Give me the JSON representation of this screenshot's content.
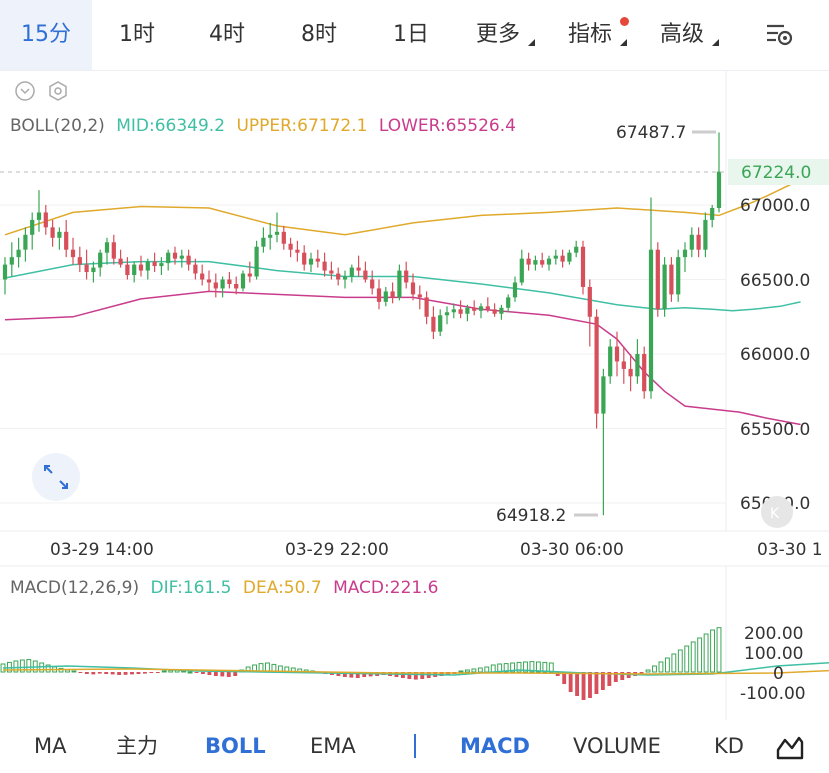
{
  "top_tabs": [
    "15分",
    "1时",
    "4时",
    "8时",
    "1日"
  ],
  "more_label": "更多",
  "indicator_label": "指标",
  "advanced_label": "高级",
  "accent_color": "#2f6fd6",
  "up_color": "#3aa655",
  "down_color": "#d64f5a",
  "boll_legend": {
    "name": "BOLL(20,2)",
    "mid": "MID:66349.2",
    "upper": "UPPER:67172.1",
    "lower": "LOWER:65526.4"
  },
  "macd_legend": {
    "name": "MACD(12,26,9)",
    "dif": "DIF:161.5",
    "dea": "DEA:50.7",
    "macd": "MACD:221.6"
  },
  "high_marker": "67487.7",
  "low_marker": "64918.2",
  "current_price": "67224.0",
  "bottom_indicators": [
    "MA",
    "主力",
    "BOLL",
    "EMA",
    "MACD",
    "VOLUME",
    "KD"
  ],
  "chart_data": {
    "type": "candlestick",
    "price_axis": {
      "ticks": [
        "67000.0",
        "66500.0",
        "66000.0",
        "65500.0",
        "65000.0"
      ],
      "range": [
        64880,
        67800
      ]
    },
    "time_axis": {
      "ticks": [
        "03-29 14:00",
        "03-29 22:00",
        "03-30 06:00",
        "03-30 1"
      ]
    },
    "macd_axis": {
      "ticks": [
        "200.00",
        "100.00",
        "0",
        "-100.00"
      ],
      "range": [
        -160,
        260
      ]
    },
    "candles": [
      [
        66500,
        66650,
        66400,
        66600
      ],
      [
        66600,
        66750,
        66520,
        66650
      ],
      [
        66650,
        66780,
        66580,
        66700
      ],
      [
        66700,
        66850,
        66620,
        66800
      ],
      [
        66800,
        66950,
        66700,
        66900
      ],
      [
        66900,
        67100,
        66820,
        66950
      ],
      [
        66950,
        67000,
        66800,
        66850
      ],
      [
        66850,
        66900,
        66720,
        66780
      ],
      [
        66780,
        66850,
        66700,
        66820
      ],
      [
        66820,
        66900,
        66650,
        66700
      ],
      [
        66700,
        66780,
        66600,
        66650
      ],
      [
        66650,
        66720,
        66550,
        66600
      ],
      [
        66600,
        66700,
        66500,
        66550
      ],
      [
        66550,
        66620,
        66480,
        66580
      ],
      [
        66580,
        66700,
        66520,
        66680
      ],
      [
        66680,
        66780,
        66600,
        66750
      ],
      [
        66750,
        66800,
        66600,
        66640
      ],
      [
        66640,
        66700,
        66580,
        66600
      ],
      [
        66600,
        66650,
        66500,
        66530
      ],
      [
        66530,
        66620,
        66480,
        66600
      ],
      [
        66600,
        66660,
        66520,
        66560
      ],
      [
        66560,
        66640,
        66500,
        66620
      ],
      [
        66620,
        66680,
        66550,
        66590
      ],
      [
        66590,
        66650,
        66530,
        66610
      ],
      [
        66610,
        66700,
        66560,
        66680
      ],
      [
        66680,
        66720,
        66600,
        66640
      ],
      [
        66640,
        66700,
        66580,
        66660
      ],
      [
        66660,
        66700,
        66560,
        66600
      ],
      [
        66600,
        66640,
        66500,
        66540
      ],
      [
        66540,
        66600,
        66460,
        66500
      ],
      [
        66500,
        66560,
        66420,
        66480
      ],
      [
        66480,
        66540,
        66380,
        66440
      ],
      [
        66440,
        66520,
        66380,
        66500
      ],
      [
        66500,
        66550,
        66440,
        66470
      ],
      [
        66470,
        66520,
        66400,
        66440
      ],
      [
        66440,
        66560,
        66420,
        66540
      ],
      [
        66540,
        66620,
        66480,
        66520
      ],
      [
        66520,
        66760,
        66500,
        66720
      ],
      [
        66720,
        66850,
        66680,
        66780
      ],
      [
        66780,
        66880,
        66700,
        66800
      ],
      [
        66800,
        66950,
        66750,
        66820
      ],
      [
        66820,
        66860,
        66700,
        66740
      ],
      [
        66740,
        66780,
        66650,
        66700
      ],
      [
        66700,
        66760,
        66620,
        66680
      ],
      [
        66680,
        66730,
        66560,
        66600
      ],
      [
        66600,
        66680,
        66550,
        66640
      ],
      [
        66640,
        66700,
        66580,
        66620
      ],
      [
        66620,
        66680,
        66520,
        66560
      ],
      [
        66560,
        66620,
        66500,
        66540
      ],
      [
        66540,
        66580,
        66460,
        66500
      ],
      [
        66500,
        66560,
        66440,
        66520
      ],
      [
        66520,
        66600,
        66480,
        66580
      ],
      [
        66580,
        66660,
        66520,
        66560
      ],
      [
        66560,
        66620,
        66480,
        66500
      ],
      [
        66500,
        66560,
        66400,
        66440
      ],
      [
        66440,
        66500,
        66300,
        66350
      ],
      [
        66350,
        66450,
        66320,
        66420
      ],
      [
        66420,
        66480,
        66340,
        66380
      ],
      [
        66380,
        66600,
        66360,
        66560
      ],
      [
        66560,
        66620,
        66440,
        66480
      ],
      [
        66480,
        66540,
        66360,
        66400
      ],
      [
        66400,
        66460,
        66300,
        66380
      ],
      [
        66380,
        66420,
        66200,
        66250
      ],
      [
        66250,
        66320,
        66100,
        66150
      ],
      [
        66150,
        66300,
        66120,
        66260
      ],
      [
        66260,
        66320,
        66200,
        66280
      ],
      [
        66280,
        66340,
        66240,
        66300
      ],
      [
        66300,
        66360,
        66240,
        66270
      ],
      [
        66270,
        66330,
        66220,
        66310
      ],
      [
        66310,
        66360,
        66260,
        66290
      ],
      [
        66290,
        66340,
        66240,
        66320
      ],
      [
        66320,
        66380,
        66280,
        66300
      ],
      [
        66300,
        66340,
        66250,
        66270
      ],
      [
        66270,
        66330,
        66230,
        66310
      ],
      [
        66310,
        66400,
        66280,
        66380
      ],
      [
        66380,
        66520,
        66350,
        66480
      ],
      [
        66480,
        66700,
        66460,
        66640
      ],
      [
        66640,
        66680,
        66560,
        66600
      ],
      [
        66600,
        66660,
        66560,
        66630
      ],
      [
        66630,
        66680,
        66580,
        66600
      ],
      [
        66600,
        66660,
        66560,
        66640
      ],
      [
        66640,
        66700,
        66600,
        66660
      ],
      [
        66660,
        66700,
        66580,
        66620
      ],
      [
        66620,
        66700,
        66600,
        66680
      ],
      [
        66680,
        66760,
        66650,
        66720
      ],
      [
        66720,
        66760,
        66400,
        66450
      ],
      [
        66450,
        66500,
        66050,
        66250
      ],
      [
        66250,
        66300,
        65500,
        65600
      ],
      [
        65600,
        65900,
        64918,
        65850
      ],
      [
        65850,
        66100,
        65800,
        66050
      ],
      [
        66050,
        66150,
        65850,
        65950
      ],
      [
        65950,
        66050,
        65800,
        65900
      ],
      [
        65900,
        66000,
        65750,
        65850
      ],
      [
        65850,
        66100,
        65800,
        66000
      ],
      [
        66000,
        66050,
        65700,
        65750
      ],
      [
        65750,
        67050,
        65700,
        66700
      ],
      [
        66700,
        66750,
        66250,
        66300
      ],
      [
        66300,
        66650,
        66250,
        66600
      ],
      [
        66600,
        66650,
        66350,
        66400
      ],
      [
        66400,
        66700,
        66350,
        66650
      ],
      [
        66650,
        66750,
        66550,
        66700
      ],
      [
        66700,
        66850,
        66650,
        66800
      ],
      [
        66800,
        66850,
        66650,
        66700
      ],
      [
        66700,
        66950,
        66650,
        66900
      ],
      [
        66900,
        67000,
        66850,
        66980
      ],
      [
        66980,
        67487,
        66950,
        67224
      ]
    ],
    "boll_upper": [
      [
        0,
        66800
      ],
      [
        10,
        66950
      ],
      [
        20,
        66990
      ],
      [
        30,
        66980
      ],
      [
        40,
        66860
      ],
      [
        50,
        66800
      ],
      [
        60,
        66880
      ],
      [
        70,
        66930
      ],
      [
        80,
        66950
      ],
      [
        90,
        66980
      ],
      [
        100,
        66950
      ],
      [
        105,
        66930
      ],
      [
        109,
        67000
      ],
      [
        112,
        67060
      ],
      [
        117,
        67170
      ]
    ],
    "boll_mid": [
      [
        0,
        66510
      ],
      [
        10,
        66600
      ],
      [
        20,
        66620
      ],
      [
        30,
        66620
      ],
      [
        40,
        66560
      ],
      [
        50,
        66520
      ],
      [
        60,
        66520
      ],
      [
        70,
        66470
      ],
      [
        80,
        66410
      ],
      [
        90,
        66330
      ],
      [
        96,
        66300
      ],
      [
        100,
        66310
      ],
      [
        104,
        66300
      ],
      [
        107,
        66290
      ],
      [
        110,
        66300
      ],
      [
        114,
        66320
      ],
      [
        117,
        66350
      ]
    ],
    "boll_lower": [
      [
        0,
        66230
      ],
      [
        10,
        66250
      ],
      [
        20,
        66370
      ],
      [
        30,
        66420
      ],
      [
        40,
        66400
      ],
      [
        50,
        66380
      ],
      [
        60,
        66380
      ],
      [
        70,
        66300
      ],
      [
        80,
        66260
      ],
      [
        87,
        66200
      ],
      [
        90,
        66100
      ],
      [
        94,
        65880
      ],
      [
        97,
        65750
      ],
      [
        100,
        65650
      ],
      [
        104,
        65630
      ],
      [
        108,
        65610
      ],
      [
        112,
        65570
      ],
      [
        117,
        65527
      ]
    ],
    "macd_hist": [
      40,
      48,
      55,
      60,
      62,
      55,
      45,
      35,
      25,
      18,
      10,
      5,
      -5,
      -10,
      -12,
      -8,
      -10,
      -12,
      -15,
      -14,
      -12,
      -10,
      -8,
      -5,
      -2,
      5,
      8,
      10,
      5,
      0,
      -5,
      -10,
      -15,
      -20,
      -22,
      -25,
      -20,
      10,
      25,
      35,
      42,
      45,
      38,
      30,
      25,
      20,
      15,
      10,
      5,
      0,
      -10,
      -15,
      -20,
      -25,
      -28,
      -30,
      -25,
      -22,
      -20,
      -15,
      -20,
      -25,
      -30,
      -35,
      -38,
      -35,
      -30,
      -25,
      -20,
      -15,
      -10,
      5,
      10,
      15,
      20,
      25,
      35,
      40,
      42,
      45,
      48,
      50,
      52,
      50,
      48,
      45,
      -20,
      -60,
      -100,
      -120,
      -140,
      -130,
      -110,
      -90,
      -70,
      -50,
      -40,
      -30,
      -20,
      -10,
      10,
      30,
      50,
      70,
      90,
      110,
      130,
      150,
      170,
      190,
      210,
      221.6
    ],
    "dif": [
      [
        0,
        20
      ],
      [
        10,
        30
      ],
      [
        20,
        20
      ],
      [
        30,
        5
      ],
      [
        40,
        0
      ],
      [
        50,
        -5
      ],
      [
        60,
        -10
      ],
      [
        70,
        -15
      ],
      [
        80,
        10
      ],
      [
        90,
        -5
      ],
      [
        100,
        -15
      ],
      [
        110,
        -10
      ],
      [
        120,
        30
      ],
      [
        130,
        50
      ],
      [
        140,
        -10
      ],
      [
        150,
        -25
      ],
      [
        170,
        -60
      ],
      [
        180,
        -90
      ],
      [
        190,
        -100
      ],
      [
        200,
        -50
      ],
      [
        210,
        50
      ],
      [
        218,
        161.5
      ]
    ],
    "dea": [
      [
        0,
        10
      ],
      [
        20,
        15
      ],
      [
        40,
        5
      ],
      [
        60,
        -5
      ],
      [
        80,
        -5
      ],
      [
        100,
        -10
      ],
      [
        120,
        -5
      ],
      [
        130,
        10
      ],
      [
        140,
        5
      ],
      [
        150,
        -10
      ],
      [
        170,
        -30
      ],
      [
        180,
        -50
      ],
      [
        190,
        -55
      ],
      [
        200,
        -40
      ],
      [
        210,
        0
      ],
      [
        218,
        50.7
      ]
    ]
  }
}
